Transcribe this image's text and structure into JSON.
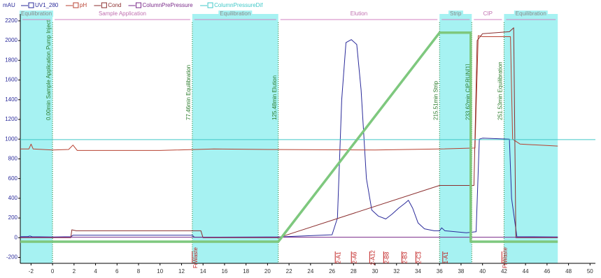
{
  "chart_data": {
    "type": "line",
    "y_label": "mAU",
    "xlim": [
      -3,
      50.5
    ],
    "ylim": [
      -260,
      2270
    ],
    "xticks": [
      -2,
      0,
      2,
      4,
      6,
      8,
      10,
      12,
      14,
      16,
      18,
      20,
      22,
      24,
      26,
      28,
      30,
      32,
      34,
      36,
      38,
      40,
      42,
      44,
      46,
      48,
      50
    ],
    "yticks": [
      -200,
      0,
      200,
      400,
      600,
      800,
      1000,
      1200,
      1400,
      1600,
      1800,
      2000,
      2200
    ],
    "series": [
      {
        "name": "UV1_280",
        "color": "#2a2a9a",
        "x": [
          -3,
          -2.3,
          -2.1,
          -1.9,
          0,
          1.7,
          1.9,
          13,
          13.2,
          21,
          26,
          26.5,
          26.9,
          27.3,
          27.8,
          28.3,
          28.7,
          29.2,
          29.7,
          30.3,
          31,
          31.6,
          32.2,
          32.8,
          33.1,
          33.5,
          34,
          34.6,
          35.5,
          36,
          36.2,
          36.5,
          38.5,
          39.4,
          39.7,
          40,
          42.5,
          42.7,
          43.2,
          47
        ],
        "values": [
          10,
          12,
          18,
          10,
          8,
          10,
          25,
          25,
          5,
          8,
          30,
          200,
          1400,
          1980,
          2010,
          1960,
          1500,
          600,
          280,
          220,
          190,
          240,
          300,
          350,
          380,
          300,
          150,
          90,
          70,
          70,
          100,
          70,
          50,
          60,
          1000,
          1010,
          1000,
          400,
          10,
          8
        ]
      },
      {
        "name": "pH",
        "color": "#b84030",
        "x": [
          -3,
          -2.2,
          -2,
          -1.8,
          0,
          1.5,
          1.9,
          2.3,
          10,
          15,
          20,
          30,
          36,
          39.3,
          39.6,
          40,
          42.6,
          42.8,
          43.5,
          47
        ],
        "values": [
          900,
          900,
          950,
          900,
          890,
          895,
          940,
          885,
          885,
          900,
          895,
          890,
          900,
          910,
          2050,
          2040,
          2040,
          1000,
          950,
          930
        ]
      },
      {
        "name": "Cond",
        "color": "#8b2e2e",
        "x": [
          -3,
          1.7,
          1.8,
          2.2,
          13.8,
          14,
          21,
          36,
          39.2,
          39.5,
          40,
          42.5,
          42.9,
          43.1,
          47
        ],
        "values": [
          0,
          0,
          80,
          70,
          70,
          0,
          0,
          530,
          530,
          2000,
          2070,
          2090,
          2130,
          0,
          0
        ]
      },
      {
        "name": "ColumnPrePressure",
        "color": "#7a2a8a",
        "x": [
          -3,
          47
        ],
        "values": [
          5,
          5
        ]
      },
      {
        "name": "ColumnPressureDif",
        "color": "#40c8c8",
        "x": [
          -3,
          50.5
        ],
        "values": [
          995,
          995
        ]
      },
      {
        "color": "#7ec87e",
        "x": [
          -3,
          21,
          36,
          38.9,
          38.9,
          47
        ],
        "values": [
          -40,
          -40,
          2080,
          2080,
          -40,
          -40
        ]
      }
    ],
    "phases": [
      {
        "start": -3,
        "end": 0,
        "label": "Equilibration",
        "shaded": true
      },
      {
        "start": 0,
        "end": 13,
        "label": "Sample Application",
        "shaded": false
      },
      {
        "start": 13,
        "end": 21,
        "label": "Equilibration",
        "shaded": true
      },
      {
        "start": 21,
        "end": 36,
        "label": "Elution",
        "shaded": false
      },
      {
        "start": 36,
        "end": 39,
        "label": "Strip",
        "shaded": true
      },
      {
        "start": 39,
        "end": 42,
        "label": "CIP",
        "shaded": false
      },
      {
        "start": 42,
        "end": 47,
        "label": "Equilibration",
        "shaded": true
      }
    ],
    "events": [
      {
        "x": 0,
        "label": "0.00min Sample Application,Pump Inject"
      },
      {
        "x": 13,
        "label": "77.46min Equilibration"
      },
      {
        "x": 21,
        "label": "125.48min Elution"
      },
      {
        "x": 36,
        "label": "215.51min Strip"
      },
      {
        "x": 39,
        "label": "233.62min CIP.RUN[1]"
      },
      {
        "x": 42,
        "label": "251.53min Equilibration"
      }
    ],
    "fractions": [
      {
        "x": 13,
        "label": "FrWaste"
      },
      {
        "x": 26.3,
        "label": "2-A1"
      },
      {
        "x": 27.8,
        "label": "2-A6"
      },
      {
        "x": 29.5,
        "label": "2-A12"
      },
      {
        "x": 30.8,
        "label": "2-B8"
      },
      {
        "x": 32.5,
        "label": "2-B3"
      },
      {
        "x": 33.8,
        "label": "2-C3"
      },
      {
        "x": 36.3,
        "label": "1-A1"
      },
      {
        "x": 41.8,
        "label": "FrWaste"
      }
    ]
  }
}
